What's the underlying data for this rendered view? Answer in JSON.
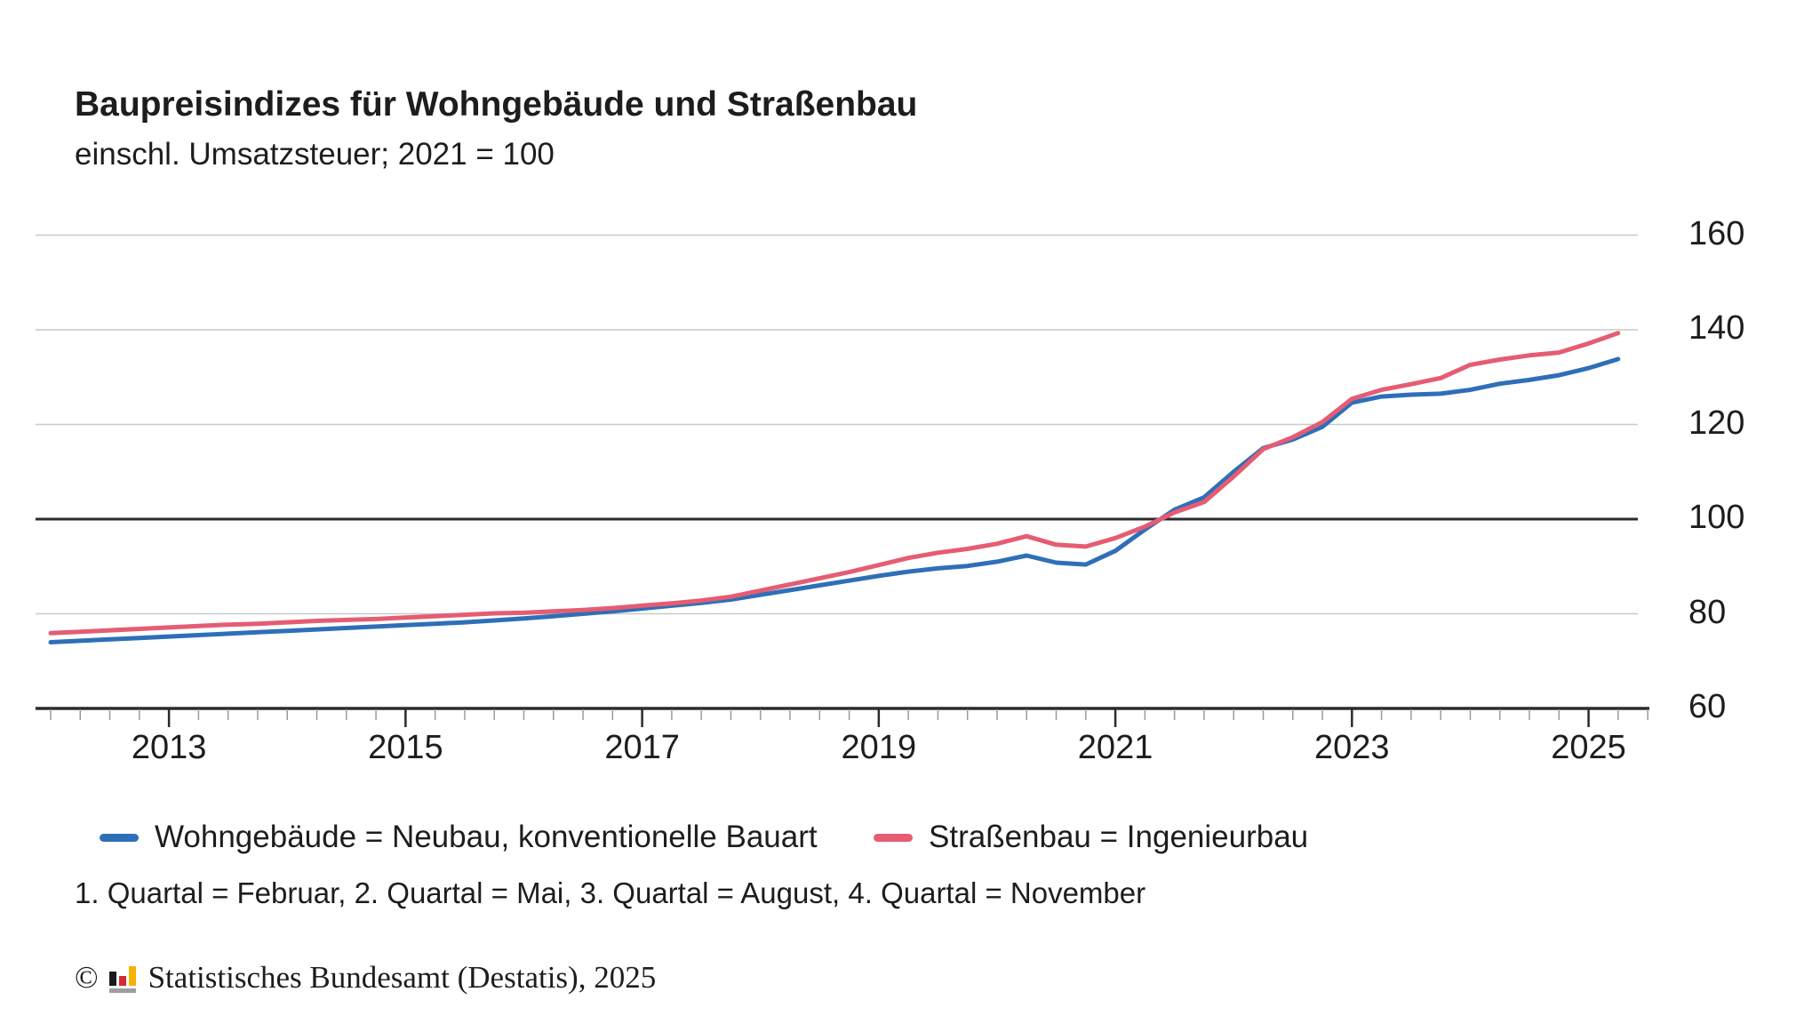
{
  "header": {
    "title": "Baupreisindizes für Wohngebäude und Straßenbau",
    "subtitle": "einschl. Umsatzsteuer; 2021 = 100"
  },
  "chart_data": {
    "type": "line",
    "title": "Baupreisindizes für Wohngebäude und Straßenbau",
    "subtitle": "einschl. Umsatzsteuer; 2021 = 100",
    "x_unit": "quarter",
    "x": [
      "2012 Q1",
      "2012 Q2",
      "2012 Q3",
      "2012 Q4",
      "2013 Q1",
      "2013 Q2",
      "2013 Q3",
      "2013 Q4",
      "2014 Q1",
      "2014 Q2",
      "2014 Q3",
      "2014 Q4",
      "2015 Q1",
      "2015 Q2",
      "2015 Q3",
      "2015 Q4",
      "2016 Q1",
      "2016 Q2",
      "2016 Q3",
      "2016 Q4",
      "2017 Q1",
      "2017 Q2",
      "2017 Q3",
      "2017 Q4",
      "2018 Q1",
      "2018 Q2",
      "2018 Q3",
      "2018 Q4",
      "2019 Q1",
      "2019 Q2",
      "2019 Q3",
      "2019 Q4",
      "2020 Q1",
      "2020 Q2",
      "2020 Q3",
      "2020 Q4",
      "2021 Q1",
      "2021 Q2",
      "2021 Q3",
      "2021 Q4",
      "2022 Q1",
      "2022 Q2",
      "2022 Q3",
      "2022 Q4",
      "2023 Q1",
      "2023 Q2",
      "2023 Q3",
      "2023 Q4",
      "2024 Q1",
      "2024 Q2",
      "2024 Q3",
      "2024 Q4",
      "2025 Q1",
      "2025 Q2"
    ],
    "series": [
      {
        "key": "wohngebaeude",
        "name": "Wohngebäude = Neubau, konventionelle Bauart",
        "color": "#2e6fb8",
        "values": [
          74.0,
          74.3,
          74.6,
          74.9,
          75.2,
          75.5,
          75.8,
          76.1,
          76.4,
          76.7,
          77.0,
          77.3,
          77.6,
          77.9,
          78.2,
          78.6,
          79.0,
          79.5,
          80.0,
          80.5,
          81.1,
          81.7,
          82.3,
          83.0,
          84.0,
          85.0,
          86.0,
          87.0,
          88.0,
          88.9,
          89.6,
          90.1,
          91.0,
          92.3,
          90.8,
          90.4,
          93.3,
          97.8,
          102.0,
          104.6,
          110.0,
          115.0,
          116.8,
          119.5,
          124.6,
          125.9,
          126.3,
          126.5,
          127.3,
          128.6,
          129.4,
          130.4,
          131.9,
          133.8
        ]
      },
      {
        "key": "strassenbau",
        "name": "Straßenbau = Ingenieurbau",
        "color": "#e55c73",
        "values": [
          75.9,
          76.2,
          76.5,
          76.8,
          77.1,
          77.4,
          77.7,
          77.9,
          78.2,
          78.5,
          78.7,
          78.9,
          79.2,
          79.5,
          79.8,
          80.1,
          80.2,
          80.5,
          80.8,
          81.2,
          81.7,
          82.2,
          82.8,
          83.6,
          84.9,
          86.2,
          87.5,
          88.8,
          90.3,
          91.8,
          92.9,
          93.7,
          94.8,
          96.4,
          94.6,
          94.2,
          96.0,
          98.4,
          101.4,
          103.6,
          109.0,
          114.8,
          117.3,
          120.5,
          125.4,
          127.3,
          128.5,
          129.8,
          132.6,
          133.7,
          134.6,
          135.2,
          137.1,
          139.3
        ]
      }
    ],
    "yticks": [
      60,
      80,
      100,
      120,
      140,
      160
    ],
    "ylim": [
      60,
      160
    ],
    "baseline_value": 100,
    "year_tick_labels": [
      "2013",
      "2015",
      "2017",
      "2019",
      "2021",
      "2023",
      "2025"
    ],
    "grid": "horizontal-only",
    "legend_position": "bottom"
  },
  "legend_note": "ticks on x-axis are quarterly; labeled every second year",
  "footnote": "1. Quartal = Februar, 2. Quartal = Mai, 3. Quartal = August, 4. Quartal = November",
  "source": {
    "copyright": "©",
    "text": "Statistisches Bundesamt (Destatis), 2025"
  },
  "colors": {
    "background": "#ffffff",
    "grid_light": "#c9c9c9",
    "grid_strong": "#2b2b2b",
    "axis": "#2b2b2b",
    "tick_minor": "#9b9b9b",
    "tick_major": "#2b2b2b",
    "text": "#1d1d1d",
    "logo_black": "#1a1a1a",
    "logo_red": "#d22a32",
    "logo_gold": "#f5b400",
    "logo_base": "#9e9e9e"
  }
}
